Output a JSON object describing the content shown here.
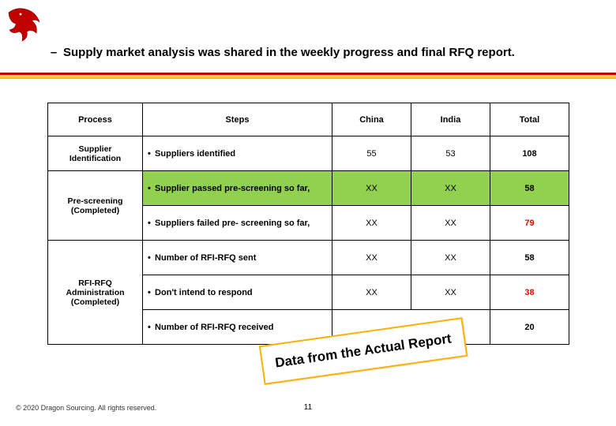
{
  "title": "Supply market analysis was shared in the weekly progress and final RFQ report.",
  "columns": {
    "process": "Process",
    "steps": "Steps",
    "china": "China",
    "india": "India",
    "total": "Total"
  },
  "rows": [
    {
      "process": "Supplier Identification",
      "rowspan": 1,
      "step": "Suppliers identified",
      "china": "55",
      "india": "53",
      "total": "108",
      "highlight": false,
      "total_color": "#000000"
    },
    {
      "process": "Pre-screening (Completed)",
      "rowspan": 2,
      "step": "Supplier passed pre-screening so far,",
      "china": "XX",
      "india": "XX",
      "total": "58",
      "highlight": true,
      "total_color": "#000000"
    },
    {
      "process": null,
      "step": "Suppliers failed pre- screening  so far,",
      "china": "XX",
      "india": "XX",
      "total": "79",
      "highlight": false,
      "total_color": "#ff0000"
    },
    {
      "process": "RFI-RFQ Administration (Completed)",
      "rowspan": 3,
      "step": "Number of RFI-RFQ sent",
      "china": "XX",
      "india": "XX",
      "total": "58",
      "highlight": false,
      "total_color": "#000000"
    },
    {
      "process": null,
      "step": "Don't intend to respond",
      "china": "XX",
      "india": "XX",
      "total": "38",
      "highlight": false,
      "total_color": "#ff0000"
    },
    {
      "process": null,
      "step": "Number of RFI-RFQ received",
      "china": "",
      "india": "",
      "total": "20",
      "highlight": false,
      "total_color": "#000000",
      "merge_ci": true
    }
  ],
  "callout": "Data from the Actual Report",
  "footer": "© 2020 Dragon Sourcing. All rights reserved.",
  "page_number": "11",
  "colors": {
    "accent_red": "#c00000",
    "accent_yellow": "#ffb000",
    "row_highlight": "#92d050",
    "total_red": "#ff0000"
  }
}
